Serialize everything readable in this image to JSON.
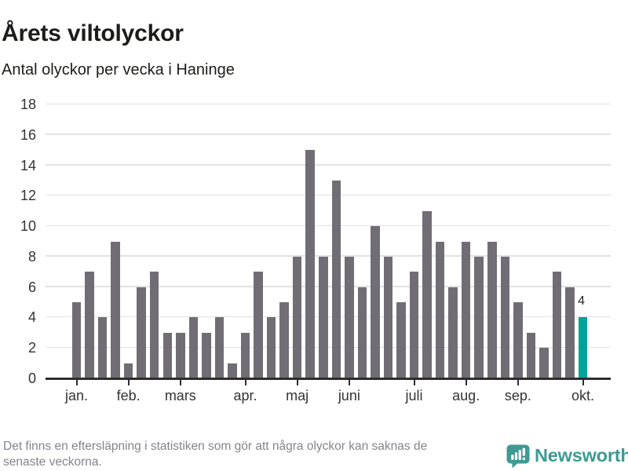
{
  "header": {
    "title": "Årets viltolyckor",
    "subtitle": "Antal olyckor per vecka i Haninge"
  },
  "chart_data": {
    "type": "bar",
    "title": "Årets viltolyckor",
    "subtitle": "Antal olyckor per vecka i Haninge",
    "xlabel": "",
    "ylabel": "",
    "x_unit": "vecka (week of year)",
    "ylim": [
      0,
      18
    ],
    "yticks": [
      0,
      2,
      4,
      6,
      8,
      10,
      12,
      14,
      16,
      18
    ],
    "grid": "horizontal",
    "legend": "none",
    "values": [
      5,
      7,
      4,
      9,
      1,
      6,
      7,
      3,
      3,
      4,
      3,
      4,
      1,
      3,
      7,
      4,
      5,
      8,
      15,
      8,
      13,
      8,
      6,
      10,
      8,
      5,
      7,
      11,
      9,
      6,
      9,
      8,
      9,
      8,
      5,
      3,
      2,
      7,
      6,
      4
    ],
    "month_ticks": [
      {
        "label": "jan.",
        "index": 0
      },
      {
        "label": "feb.",
        "index": 4
      },
      {
        "label": "mars",
        "index": 8
      },
      {
        "label": "apr.",
        "index": 13
      },
      {
        "label": "maj",
        "index": 17
      },
      {
        "label": "juni",
        "index": 21
      },
      {
        "label": "juli",
        "index": 26
      },
      {
        "label": "aug.",
        "index": 30
      },
      {
        "label": "sep.",
        "index": 34
      },
      {
        "label": "okt.",
        "index": 39
      }
    ],
    "highlight": {
      "index": 39,
      "value": 4,
      "label": "4"
    },
    "colors": {
      "bar": "#706e74",
      "highlight": "#00a39c"
    }
  },
  "footer": {
    "note_lines": [
      "Det finns en eftersläpning i statistiken som gör att några olyckor kan saknas de",
      "senaste veckorna."
    ],
    "brand": "Newsworthy",
    "brand_color": "#3d9a93"
  }
}
